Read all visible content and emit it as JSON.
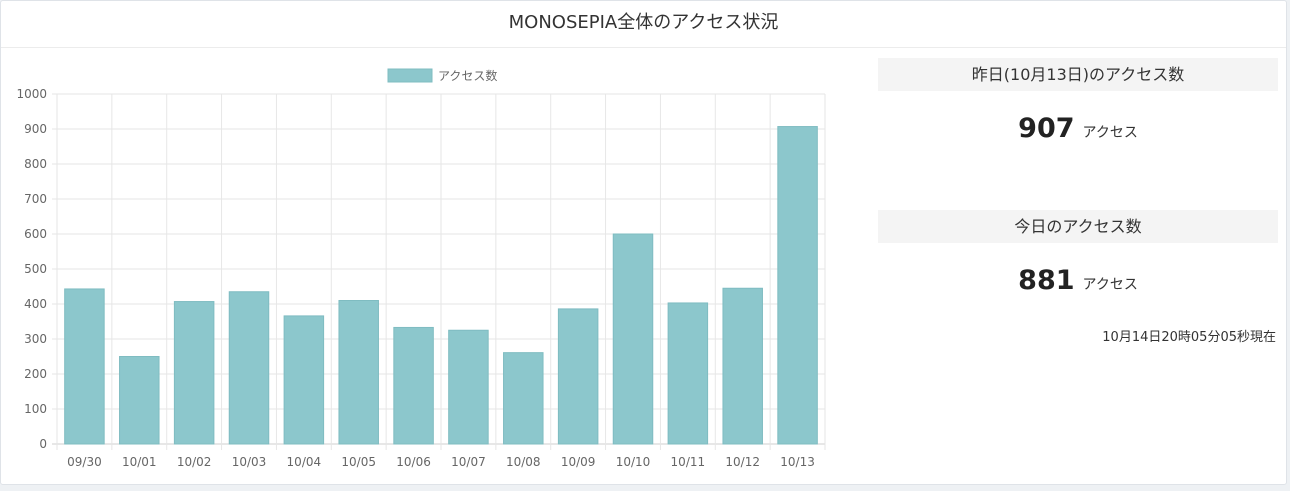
{
  "page": {
    "title": "MONOSEPIA全体のアクセス状況"
  },
  "chart_data": {
    "type": "bar",
    "legend": "アクセス数",
    "legend_position": "top-center",
    "categories": [
      "09/30",
      "10/01",
      "10/02",
      "10/03",
      "10/04",
      "10/05",
      "10/06",
      "10/07",
      "10/08",
      "10/09",
      "10/10",
      "10/11",
      "10/12",
      "10/13"
    ],
    "values": [
      443,
      250,
      407,
      435,
      366,
      410,
      333,
      325,
      261,
      386,
      600,
      403,
      445,
      907
    ],
    "ylim": [
      0,
      1000
    ],
    "yticks": [
      0,
      100,
      200,
      300,
      400,
      500,
      600,
      700,
      800,
      900,
      1000
    ],
    "grid": true,
    "colors": {
      "bar_fill": "#8cc7cc",
      "bar_stroke": "#7fbcc1",
      "grid": "#e6e6e6"
    }
  },
  "stats": {
    "yesterday": {
      "title": "昨日(10月13日)のアクセス数",
      "value": "907",
      "unit": "アクセス"
    },
    "today": {
      "title": "今日のアクセス数",
      "value": "881",
      "unit": "アクセス"
    },
    "timestamp": "10月14日20時05分05秒現在"
  }
}
